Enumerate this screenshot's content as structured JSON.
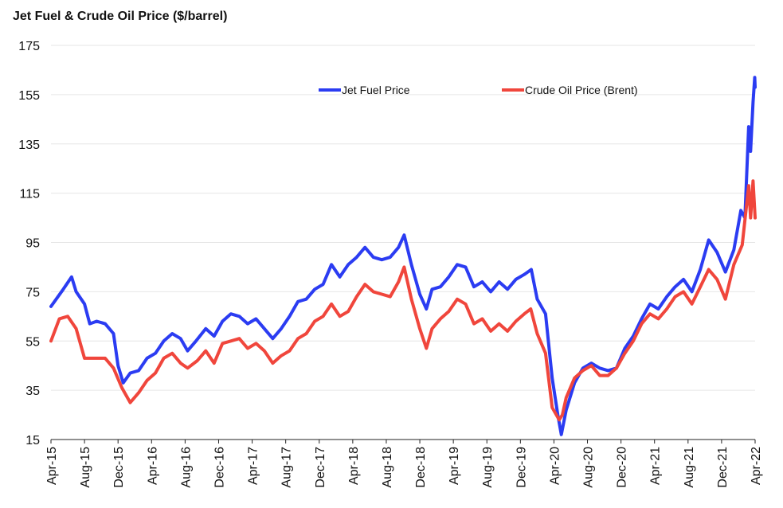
{
  "chart_data": {
    "type": "line",
    "title": "Jet Fuel & Crude Oil Price ($/barrel)",
    "xlabel": "",
    "ylabel": "",
    "ylim": [
      15,
      175
    ],
    "yticks": [
      15,
      35,
      55,
      75,
      95,
      115,
      135,
      155,
      175
    ],
    "xlim": [
      "2015-04",
      "2022-04"
    ],
    "xticks": [
      "Apr-15",
      "Aug-15",
      "Dec-15",
      "Apr-16",
      "Aug-16",
      "Dec-16",
      "Apr-17",
      "Aug-17",
      "Dec-17",
      "Apr-18",
      "Aug-18",
      "Dec-18",
      "Apr-19",
      "Aug-19",
      "Dec-19",
      "Apr-20",
      "Aug-20",
      "Dec-20",
      "Apr-21",
      "Aug-21",
      "Dec-21",
      "Apr-22"
    ],
    "grid": "horizontal",
    "legend": "top-center",
    "series": [
      {
        "name": "Jet Fuel Price",
        "color": "#2b3cf2",
        "points": [
          [
            "2015-04-01",
            69
          ],
          [
            "2015-05-15",
            76
          ],
          [
            "2015-06-15",
            81
          ],
          [
            "2015-07-01",
            75
          ],
          [
            "2015-08-01",
            70
          ],
          [
            "2015-08-20",
            62
          ],
          [
            "2015-09-15",
            63
          ],
          [
            "2015-10-15",
            62
          ],
          [
            "2015-11-15",
            58
          ],
          [
            "2015-12-01",
            45
          ],
          [
            "2015-12-20",
            38
          ],
          [
            "2016-01-15",
            42
          ],
          [
            "2016-02-15",
            43
          ],
          [
            "2016-03-15",
            48
          ],
          [
            "2016-04-15",
            50
          ],
          [
            "2016-05-15",
            55
          ],
          [
            "2016-06-15",
            58
          ],
          [
            "2016-07-15",
            56
          ],
          [
            "2016-08-10",
            51
          ],
          [
            "2016-09-10",
            55
          ],
          [
            "2016-10-15",
            60
          ],
          [
            "2016-11-15",
            57
          ],
          [
            "2016-12-15",
            63
          ],
          [
            "2017-01-15",
            66
          ],
          [
            "2017-02-15",
            65
          ],
          [
            "2017-03-15",
            62
          ],
          [
            "2017-04-15",
            64
          ],
          [
            "2017-05-15",
            60
          ],
          [
            "2017-06-15",
            56
          ],
          [
            "2017-07-15",
            60
          ],
          [
            "2017-08-15",
            65
          ],
          [
            "2017-09-15",
            71
          ],
          [
            "2017-10-15",
            72
          ],
          [
            "2017-11-15",
            76
          ],
          [
            "2017-12-15",
            78
          ],
          [
            "2018-01-15",
            86
          ],
          [
            "2018-02-15",
            81
          ],
          [
            "2018-03-15",
            86
          ],
          [
            "2018-04-15",
            89
          ],
          [
            "2018-05-15",
            93
          ],
          [
            "2018-06-15",
            89
          ],
          [
            "2018-07-15",
            88
          ],
          [
            "2018-08-15",
            89
          ],
          [
            "2018-09-15",
            93
          ],
          [
            "2018-10-05",
            98
          ],
          [
            "2018-11-01",
            86
          ],
          [
            "2018-12-01",
            74
          ],
          [
            "2018-12-25",
            68
          ],
          [
            "2019-01-15",
            76
          ],
          [
            "2019-02-15",
            77
          ],
          [
            "2019-03-15",
            81
          ],
          [
            "2019-04-15",
            86
          ],
          [
            "2019-05-15",
            85
          ],
          [
            "2019-06-15",
            77
          ],
          [
            "2019-07-15",
            79
          ],
          [
            "2019-08-15",
            75
          ],
          [
            "2019-09-15",
            79
          ],
          [
            "2019-10-15",
            76
          ],
          [
            "2019-11-15",
            80
          ],
          [
            "2019-12-15",
            82
          ],
          [
            "2020-01-10",
            84
          ],
          [
            "2020-02-01",
            72
          ],
          [
            "2020-03-01",
            66
          ],
          [
            "2020-03-25",
            40
          ],
          [
            "2020-04-15",
            25
          ],
          [
            "2020-04-28",
            17
          ],
          [
            "2020-05-15",
            27
          ],
          [
            "2020-06-15",
            38
          ],
          [
            "2020-07-15",
            44
          ],
          [
            "2020-08-15",
            46
          ],
          [
            "2020-09-15",
            44
          ],
          [
            "2020-10-15",
            43
          ],
          [
            "2020-11-15",
            44
          ],
          [
            "2020-12-15",
            52
          ],
          [
            "2021-01-15",
            57
          ],
          [
            "2021-02-15",
            64
          ],
          [
            "2021-03-15",
            70
          ],
          [
            "2021-04-15",
            68
          ],
          [
            "2021-05-15",
            73
          ],
          [
            "2021-06-15",
            77
          ],
          [
            "2021-07-15",
            80
          ],
          [
            "2021-08-15",
            75
          ],
          [
            "2021-09-15",
            84
          ],
          [
            "2021-10-15",
            96
          ],
          [
            "2021-11-15",
            91
          ],
          [
            "2021-12-15",
            83
          ],
          [
            "2022-01-15",
            92
          ],
          [
            "2022-02-10",
            108
          ],
          [
            "2022-02-25",
            105
          ],
          [
            "2022-03-08",
            142
          ],
          [
            "2022-03-15",
            132
          ],
          [
            "2022-03-24",
            152
          ],
          [
            "2022-03-30",
            162
          ],
          [
            "2022-04-01",
            158
          ]
        ]
      },
      {
        "name": "Crude Oil Price (Brent)",
        "color": "#f0463c",
        "points": [
          [
            "2015-04-01",
            55
          ],
          [
            "2015-05-01",
            64
          ],
          [
            "2015-06-01",
            65
          ],
          [
            "2015-07-01",
            60
          ],
          [
            "2015-08-01",
            48
          ],
          [
            "2015-09-15",
            48
          ],
          [
            "2015-10-15",
            48
          ],
          [
            "2015-11-15",
            44
          ],
          [
            "2015-12-15",
            36
          ],
          [
            "2016-01-15",
            30
          ],
          [
            "2016-02-15",
            34
          ],
          [
            "2016-03-15",
            39
          ],
          [
            "2016-04-15",
            42
          ],
          [
            "2016-05-15",
            48
          ],
          [
            "2016-06-15",
            50
          ],
          [
            "2016-07-15",
            46
          ],
          [
            "2016-08-10",
            44
          ],
          [
            "2016-09-15",
            47
          ],
          [
            "2016-10-15",
            51
          ],
          [
            "2016-11-15",
            46
          ],
          [
            "2016-12-15",
            54
          ],
          [
            "2017-01-15",
            55
          ],
          [
            "2017-02-15",
            56
          ],
          [
            "2017-03-15",
            52
          ],
          [
            "2017-04-15",
            54
          ],
          [
            "2017-05-15",
            51
          ],
          [
            "2017-06-15",
            46
          ],
          [
            "2017-07-15",
            49
          ],
          [
            "2017-08-15",
            51
          ],
          [
            "2017-09-15",
            56
          ],
          [
            "2017-10-15",
            58
          ],
          [
            "2017-11-15",
            63
          ],
          [
            "2017-12-15",
            65
          ],
          [
            "2018-01-15",
            70
          ],
          [
            "2018-02-15",
            65
          ],
          [
            "2018-03-15",
            67
          ],
          [
            "2018-04-15",
            73
          ],
          [
            "2018-05-15",
            78
          ],
          [
            "2018-06-15",
            75
          ],
          [
            "2018-07-15",
            74
          ],
          [
            "2018-08-15",
            73
          ],
          [
            "2018-09-15",
            79
          ],
          [
            "2018-10-05",
            85
          ],
          [
            "2018-11-01",
            72
          ],
          [
            "2018-12-01",
            60
          ],
          [
            "2018-12-25",
            52
          ],
          [
            "2019-01-15",
            60
          ],
          [
            "2019-02-15",
            64
          ],
          [
            "2019-03-15",
            67
          ],
          [
            "2019-04-15",
            72
          ],
          [
            "2019-05-15",
            70
          ],
          [
            "2019-06-15",
            62
          ],
          [
            "2019-07-15",
            64
          ],
          [
            "2019-08-15",
            59
          ],
          [
            "2019-09-15",
            62
          ],
          [
            "2019-10-15",
            59
          ],
          [
            "2019-11-15",
            63
          ],
          [
            "2019-12-15",
            66
          ],
          [
            "2020-01-08",
            68
          ],
          [
            "2020-02-01",
            58
          ],
          [
            "2020-03-01",
            50
          ],
          [
            "2020-03-25",
            28
          ],
          [
            "2020-04-20",
            23
          ],
          [
            "2020-05-01",
            25
          ],
          [
            "2020-05-15",
            32
          ],
          [
            "2020-06-15",
            40
          ],
          [
            "2020-07-15",
            43
          ],
          [
            "2020-08-15",
            45
          ],
          [
            "2020-09-15",
            41
          ],
          [
            "2020-10-15",
            41
          ],
          [
            "2020-11-15",
            44
          ],
          [
            "2020-12-15",
            50
          ],
          [
            "2021-01-15",
            55
          ],
          [
            "2021-02-15",
            62
          ],
          [
            "2021-03-15",
            66
          ],
          [
            "2021-04-15",
            64
          ],
          [
            "2021-05-15",
            68
          ],
          [
            "2021-06-15",
            73
          ],
          [
            "2021-07-15",
            75
          ],
          [
            "2021-08-15",
            70
          ],
          [
            "2021-09-15",
            77
          ],
          [
            "2021-10-15",
            84
          ],
          [
            "2021-11-15",
            80
          ],
          [
            "2021-12-15",
            72
          ],
          [
            "2022-01-15",
            86
          ],
          [
            "2022-02-15",
            94
          ],
          [
            "2022-03-08",
            118
          ],
          [
            "2022-03-15",
            105
          ],
          [
            "2022-03-24",
            120
          ],
          [
            "2022-04-01",
            105
          ]
        ]
      }
    ]
  }
}
